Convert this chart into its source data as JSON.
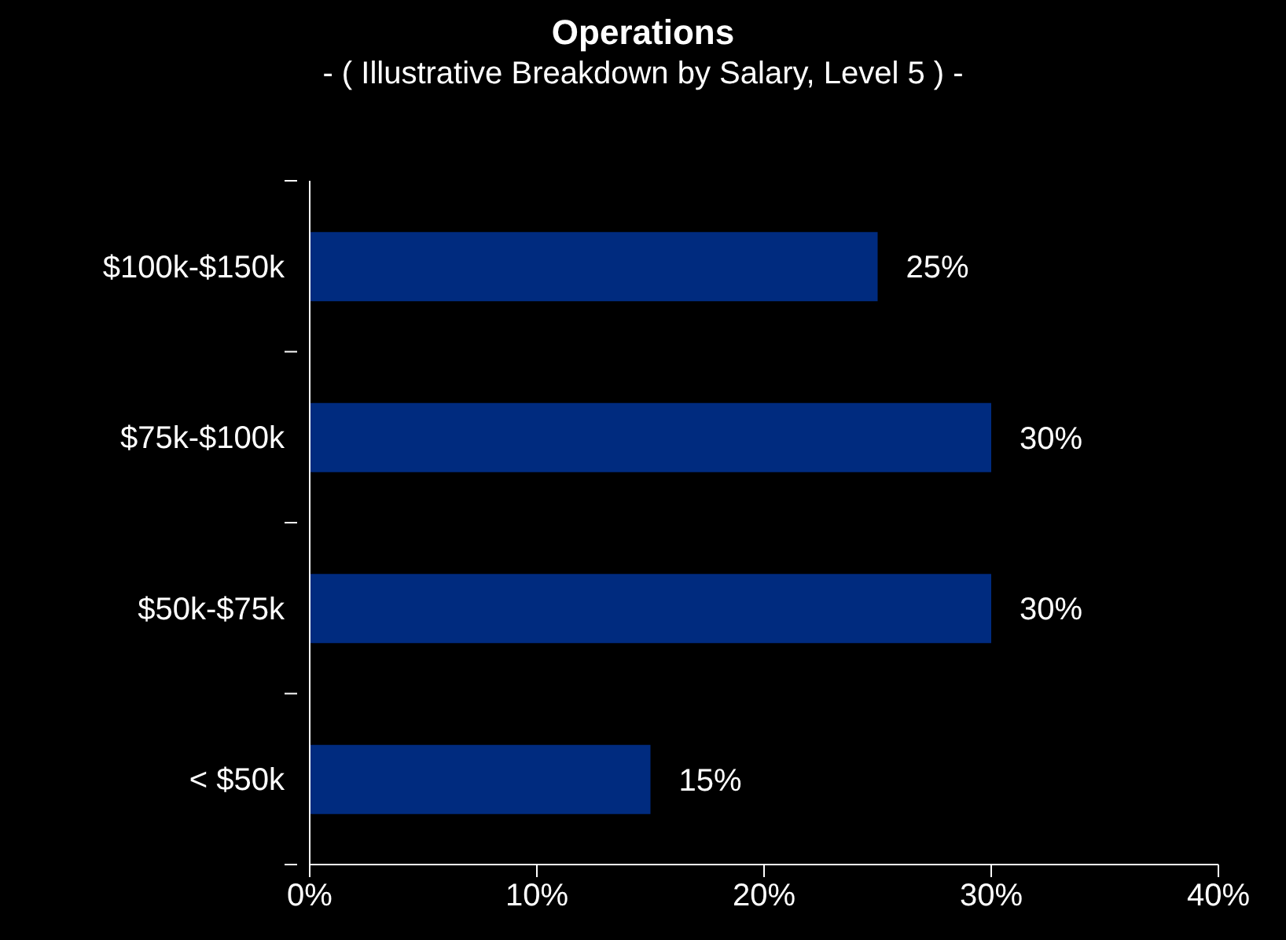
{
  "chart_data": {
    "type": "bar",
    "orientation": "horizontal",
    "title": "Operations",
    "subtitle": "- ( Illustrative Breakdown by Salary, Level 5 ) -",
    "categories": [
      "$100k-$150k",
      "$75k-$100k",
      "$50k-$75k",
      "< $50k"
    ],
    "values": [
      25,
      30,
      30,
      15
    ],
    "color": "#002b7f",
    "value_labels": [
      "25%",
      "30%",
      "30%",
      "15%"
    ],
    "xlim": [
      0,
      40
    ],
    "xticks": [
      {
        "value": 0,
        "label": "0%"
      },
      {
        "value": 10,
        "label": "10%"
      },
      {
        "value": 20,
        "label": "20%"
      },
      {
        "value": 30,
        "label": "30%"
      },
      {
        "value": 40,
        "label": "40%"
      }
    ],
    "grid": false,
    "legend": false
  }
}
